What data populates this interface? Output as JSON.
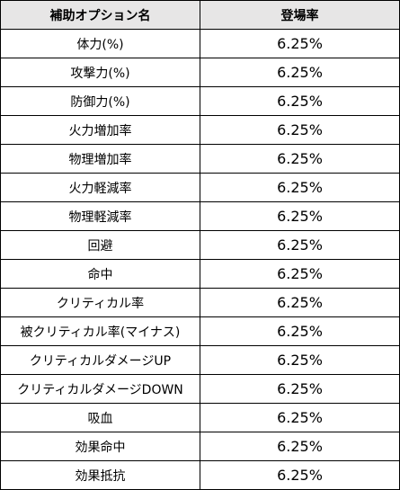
{
  "table": {
    "headers": {
      "option": "補助オプション名",
      "rate": "登場率"
    },
    "rows": [
      {
        "name": "体力(%)",
        "rate": "6.25%"
      },
      {
        "name": "攻撃力(%)",
        "rate": "6.25%"
      },
      {
        "name": "防御力(%)",
        "rate": "6.25%"
      },
      {
        "name": "火力増加率",
        "rate": "6.25%"
      },
      {
        "name": "物理増加率",
        "rate": "6.25%"
      },
      {
        "name": "火力軽減率",
        "rate": "6.25%"
      },
      {
        "name": "物理軽減率",
        "rate": "6.25%"
      },
      {
        "name": "回避",
        "rate": "6.25%"
      },
      {
        "name": "命中",
        "rate": "6.25%"
      },
      {
        "name": "クリティカル率",
        "rate": "6.25%"
      },
      {
        "name": "被クリティカル率(マイナス)",
        "rate": "6.25%"
      },
      {
        "name": "クリティカルダメージUP",
        "rate": "6.25%"
      },
      {
        "name": "クリティカルダメージDOWN",
        "rate": "6.25%"
      },
      {
        "name": "吸血",
        "rate": "6.25%"
      },
      {
        "name": "効果命中",
        "rate": "6.25%"
      },
      {
        "name": "効果抵抗",
        "rate": "6.25%"
      }
    ]
  }
}
